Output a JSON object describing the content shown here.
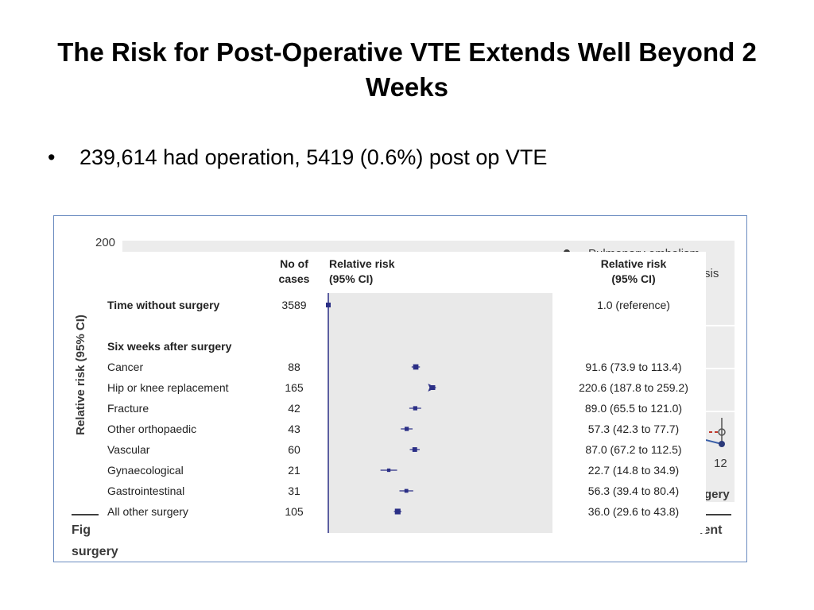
{
  "slide": {
    "title": "The Risk for Post-Operative VTE Extends Well Beyond 2 Weeks",
    "bullet": "239,614 had operation, 5419 (0.6%) post op VTE"
  },
  "background_figure": {
    "y_axis_label": "Relative risk (95% CI)",
    "y_tick_top": "200",
    "legend_line1": "Pulmonary embolism",
    "legend_line2": "sis",
    "x_tick_right": "12",
    "x_label_fragment": "gery",
    "caption_start": "Fig",
    "caption_end": "ient",
    "caption_line2": "surgery"
  },
  "chart_data": {
    "type": "forest",
    "columns": {
      "cases_header": "No of cases",
      "rr_header": "Relative risk (95% CI)",
      "rr_text_header": "Relative risk (95% CI)"
    },
    "reference_row": {
      "label": "Time without surgery",
      "cases": "3589",
      "rr": 1.0,
      "text": "1.0 (reference)"
    },
    "section_header": "Six weeks after surgery",
    "rows": [
      {
        "label": "Cancer",
        "cases": "88",
        "rr": 91.6,
        "lo": 73.9,
        "hi": 113.4,
        "text": "91.6 (73.9 to 113.4)"
      },
      {
        "label": "Hip or knee replacement",
        "cases": "165",
        "rr": 220.6,
        "lo": 187.8,
        "hi": 259.2,
        "text": "220.6 (187.8 to 259.2)",
        "off_scale": true
      },
      {
        "label": "Fracture",
        "cases": "42",
        "rr": 89.0,
        "lo": 65.5,
        "hi": 121.0,
        "text": "89.0 (65.5 to 121.0)"
      },
      {
        "label": "Other orthopaedic",
        "cases": "43",
        "rr": 57.3,
        "lo": 42.3,
        "hi": 77.7,
        "text": "57.3 (42.3 to 77.7)"
      },
      {
        "label": "Vascular",
        "cases": "60",
        "rr": 87.0,
        "lo": 67.2,
        "hi": 112.5,
        "text": "87.0 (67.2 to 112.5)"
      },
      {
        "label": "Gynaecological",
        "cases": "21",
        "rr": 22.7,
        "lo": 14.8,
        "hi": 34.9,
        "text": "22.7 (14.8 to 34.9)"
      },
      {
        "label": "Gastrointestinal",
        "cases": "31",
        "rr": 56.3,
        "lo": 39.4,
        "hi": 80.4,
        "text": "56.3 (39.4 to 80.4)"
      },
      {
        "label": "All other surgery",
        "cases": "105",
        "rr": 36.0,
        "lo": 29.6,
        "hi": 43.8,
        "text": "36.0 (29.6 to 43.8)"
      }
    ],
    "x_scale": "log",
    "colors": {
      "mark": "#2b2f86",
      "panel": "#e9e9e9"
    }
  }
}
